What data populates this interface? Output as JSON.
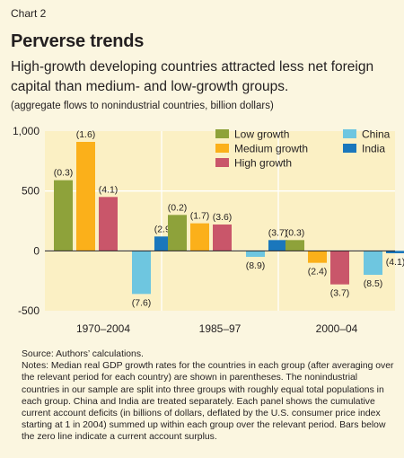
{
  "header": {
    "chart_label": "Chart 2",
    "title": "Perverse trends",
    "subtitle": "High-growth developing countries attracted less net foreign capital than medium- and low-growth groups.",
    "units": "(aggregate flows to nonindustrial countries, billion dollars)"
  },
  "footer": {
    "source": "Source: Authors’ calculations.",
    "notes": "Notes: Median real GDP growth rates for the countries in each group (after averaging over the relevant period for each country) are shown in parentheses. The nonindustrial countries in our sample are split into three groups with roughly equal total populations in each group. China and India are treated separately. Each panel shows the cumulative current account deficits (in billions of dollars, deflated by the U.S. consumer price index starting at 1 in 2004) summed up within each group over the relevant period. Bars below the zero line indicate a current account surplus."
  },
  "chart_data": {
    "type": "bar",
    "categories": [
      "1970–2004",
      "1985–97",
      "2000–04"
    ],
    "ylim": [
      -500,
      1000
    ],
    "yticks": [
      -500,
      0,
      500,
      1000
    ],
    "ytick_labels": [
      "-500",
      "0",
      "500",
      "1,000"
    ],
    "grid": true,
    "legend_position": "top-right",
    "series": [
      {
        "name": "Low growth",
        "color": "#8ea23a",
        "values": [
          590,
          300,
          90
        ],
        "labels": [
          "(0.3)",
          "(0.2)",
          "(0.3)"
        ]
      },
      {
        "name": "Medium growth",
        "color": "#fbb01a",
        "values": [
          910,
          230,
          -100
        ],
        "labels": [
          "(1.6)",
          "(1.7)",
          "(2.4)"
        ]
      },
      {
        "name": "High growth",
        "color": "#c9566a",
        "values": [
          450,
          220,
          -280
        ],
        "labels": [
          "(4.1)",
          "(3.6)",
          "(3.7)"
        ]
      },
      {
        "name": "China",
        "color": "#6ec6e0",
        "values": [
          -360,
          -50,
          -200
        ],
        "labels": [
          "(7.6)",
          "(8.9)",
          "(8.5)"
        ]
      },
      {
        "name": "India",
        "color": "#1a77bc",
        "values": [
          120,
          90,
          -20
        ],
        "labels": [
          "(2.9)",
          "(3.7)",
          "(4.1)"
        ]
      }
    ]
  }
}
